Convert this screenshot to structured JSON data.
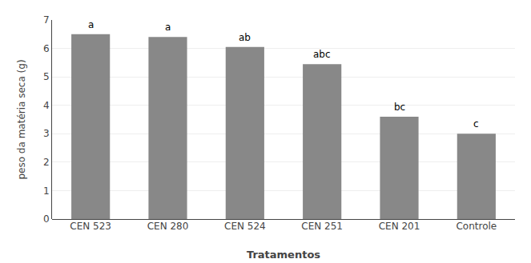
{
  "chart_data": {
    "type": "bar",
    "categories": [
      "CEN 523",
      "CEN 280",
      "CEN 524",
      "CEN 251",
      "CEN 201",
      "Controle"
    ],
    "values": [
      6.5,
      6.4,
      6.05,
      5.45,
      3.6,
      3.0
    ],
    "color": "#888888",
    "xlabel": "Tratamentos",
    "ylabel": "peso da matéria seca (g)",
    "ylim": [
      0,
      7
    ],
    "yticks": [
      0,
      1,
      2,
      3,
      4,
      5,
      6,
      7
    ],
    "grid": true,
    "annotations": [
      {
        "category": "CEN 523",
        "text": "a"
      },
      {
        "category": "CEN 280",
        "text": "a"
      },
      {
        "category": "CEN 524",
        "text": "ab"
      },
      {
        "category": "CEN 251",
        "text": "abc"
      },
      {
        "category": "CEN 201",
        "text": "bc"
      },
      {
        "category": "Controle",
        "text": "c"
      }
    ]
  }
}
